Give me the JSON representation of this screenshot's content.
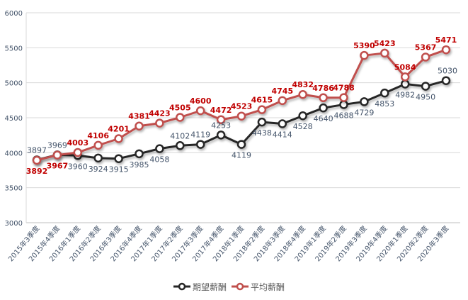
{
  "chart_data": {
    "type": "line",
    "title": "",
    "xlabel": "",
    "ylabel": "",
    "ylim": [
      3000,
      6000
    ],
    "yticks": [
      3000,
      3500,
      4000,
      4500,
      5000,
      5500,
      6000
    ],
    "grid": true,
    "legend_position": "bottom",
    "categories": [
      "2015年3季度",
      "2015年4季度",
      "2016年1季度",
      "2016年2季度",
      "2016年3季度",
      "2016年4季度",
      "2017年1季度",
      "2017年2季度",
      "2017年3季度",
      "2017年4季度",
      "2018年1季度",
      "2018年2季度",
      "2018年3季度",
      "2018年4季度",
      "2019年1季度",
      "2019年2季度",
      "2019年3季度",
      "2019年4季度",
      "2020年1季度",
      "2020年2季度",
      "2020年3季度"
    ],
    "series": [
      {
        "name": "期望薪酬",
        "color": "#262626",
        "label_color": "#44546A",
        "values": [
          3897,
          3969,
          3960,
          3924,
          3915,
          3985,
          4058,
          4102,
          4119,
          4253,
          4119,
          4438,
          4414,
          4528,
          4640,
          4688,
          4729,
          4853,
          4982,
          4950,
          5030
        ]
      },
      {
        "name": "平均薪酬",
        "color": "#C0504D",
        "label_color": "#C00000",
        "values": [
          3892,
          3967,
          4003,
          4106,
          4201,
          4381,
          4423,
          4505,
          4600,
          4472,
          4523,
          4615,
          4745,
          4832,
          4786,
          4788,
          5390,
          5423,
          5084,
          5367,
          5471
        ]
      }
    ]
  }
}
